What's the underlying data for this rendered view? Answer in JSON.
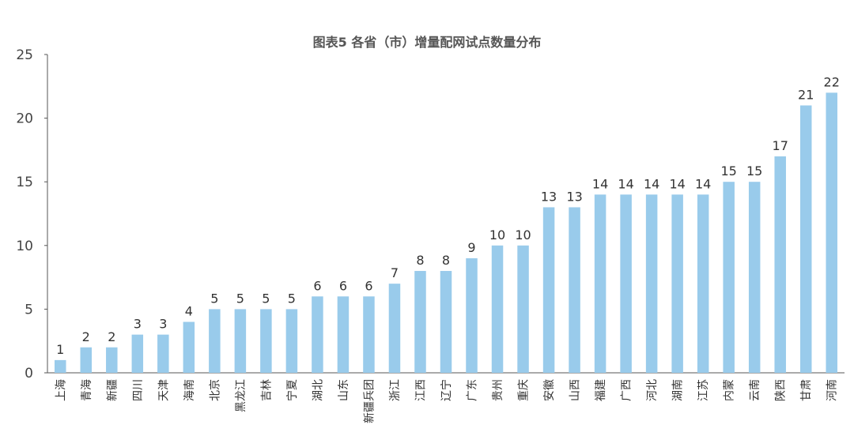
{
  "chart_data": {
    "type": "bar",
    "title": "图表5 各省（市）增量配网试点数量分布",
    "xlabel": "",
    "ylabel": "",
    "ylim": [
      0,
      25
    ],
    "yticks": [
      0,
      5,
      10,
      15,
      20,
      25
    ],
    "grid": false,
    "legend": "none",
    "bar_color": "#99cbeb",
    "categories": [
      "上海",
      "青海",
      "新疆",
      "四川",
      "天津",
      "海南",
      "北京",
      "黑龙江",
      "吉林",
      "宁夏",
      "湖北",
      "山东",
      "新疆兵团",
      "浙江",
      "江西",
      "辽宁",
      "广东",
      "贵州",
      "重庆",
      "安徽",
      "山西",
      "福建",
      "广西",
      "河北",
      "湖南",
      "江苏",
      "内蒙",
      "云南",
      "陕西",
      "甘肃",
      "河南"
    ],
    "values": [
      1,
      2,
      2,
      3,
      3,
      4,
      5,
      5,
      5,
      5,
      6,
      6,
      6,
      7,
      8,
      8,
      9,
      10,
      10,
      13,
      13,
      14,
      14,
      14,
      14,
      14,
      15,
      15,
      17,
      21,
      22
    ]
  }
}
